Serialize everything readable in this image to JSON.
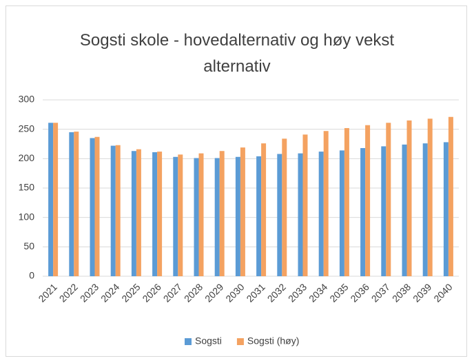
{
  "chart_data": {
    "type": "bar",
    "title": "Sogsti skole - hovedalternativ og høy vekst alternativ",
    "categories": [
      "2021",
      "2022",
      "2023",
      "2024",
      "2025",
      "2026",
      "2027",
      "2028",
      "2029",
      "2030",
      "2031",
      "2032",
      "2033",
      "2034",
      "2035",
      "2036",
      "2037",
      "2038",
      "2039",
      "2040"
    ],
    "series": [
      {
        "name": "Sogsti",
        "color": "#5b9bd5",
        "values": [
          261,
          245,
          235,
          222,
          213,
          211,
          203,
          201,
          201,
          203,
          204,
          208,
          209,
          212,
          214,
          218,
          221,
          224,
          226,
          228
        ]
      },
      {
        "name": "Sogsti (høy)",
        "color": "#f4a261",
        "values": [
          261,
          246,
          237,
          223,
          216,
          212,
          207,
          209,
          213,
          219,
          226,
          234,
          241,
          247,
          252,
          257,
          261,
          265,
          268,
          271
        ]
      }
    ],
    "ylim": [
      0,
      300
    ],
    "yticks": [
      0,
      50,
      100,
      150,
      200,
      250,
      300
    ],
    "grid": true,
    "legend": "bottom"
  }
}
